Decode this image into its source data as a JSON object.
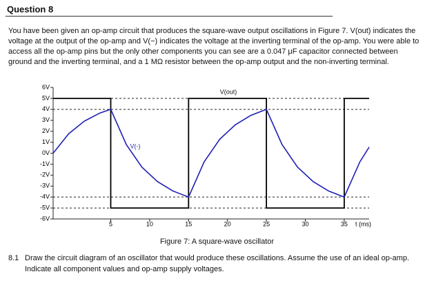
{
  "question": {
    "title": "Question 8",
    "text": "You have been given an op-amp circuit that produces the square-wave output oscillations in Figure 7. V(out) indicates the voltage at the output of the op-amp and V(−) indicates the voltage at the inverting terminal of the op-amp. You were able to access all the op-amp pins but the only other components you can see are a 0.047 μF capacitor connected between ground and the inverting terminal, and a 1 MΩ resistor between the op-amp output and the non-inverting terminal."
  },
  "chart_data": {
    "type": "line",
    "x_label": "t (ms)",
    "xlim": [
      -2.4,
      38.2
    ],
    "xticks": [
      5,
      10,
      15,
      20,
      25,
      30,
      35
    ],
    "ylim": [
      -6,
      6
    ],
    "yticks": [
      {
        "value": 6,
        "label": "6V"
      },
      {
        "value": 5,
        "label": "5V"
      },
      {
        "value": 4,
        "label": "4V"
      },
      {
        "value": 3,
        "label": "3V"
      },
      {
        "value": 2,
        "label": "2V"
      },
      {
        "value": 1,
        "label": "1V"
      },
      {
        "value": 0,
        "label": "0V"
      },
      {
        "value": -1,
        "label": "-1V"
      },
      {
        "value": -2,
        "label": "-2V"
      },
      {
        "value": -3,
        "label": "-3V"
      },
      {
        "value": -4,
        "label": "-4V"
      },
      {
        "value": -5,
        "label": "-5V"
      },
      {
        "value": -6,
        "label": "-6V"
      }
    ],
    "hlines": [
      5,
      4,
      -4,
      -5
    ],
    "series": [
      {
        "name": "V(out)",
        "color": "#000000",
        "x": [
          -2.4,
          5,
          5,
          15,
          15,
          25,
          25,
          35,
          35,
          38.2
        ],
        "values": [
          5,
          5,
          -5,
          -5,
          5,
          5,
          -5,
          -5,
          5,
          5
        ]
      },
      {
        "name": "V(-)",
        "color": "#1f1fb4",
        "x": [
          -2.4,
          -0.4,
          1.6,
          3.6,
          5,
          7,
          9,
          11,
          13,
          15,
          17,
          19,
          21,
          23,
          25,
          27,
          29,
          31,
          33,
          35,
          37,
          38.2
        ],
        "values": [
          0,
          1.78,
          2.92,
          3.66,
          4,
          0.8,
          -1.27,
          -2.59,
          -3.45,
          -4,
          -0.8,
          1.27,
          2.59,
          3.45,
          4,
          0.8,
          -1.27,
          -2.59,
          -3.45,
          -4,
          -0.8,
          0.55
        ]
      }
    ]
  },
  "figure_caption": "Figure 7: A square-wave oscillator",
  "subquestion": {
    "number": "8.1",
    "text": "Draw the circuit diagram of an oscillator that would produce these oscillations. Assume the use of an ideal op-amp. Indicate all component values and op-amp supply voltages."
  }
}
